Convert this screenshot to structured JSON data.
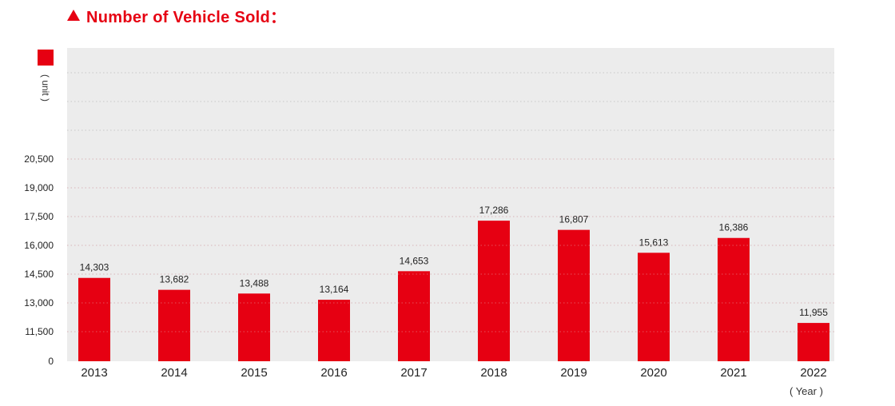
{
  "header": {
    "title": "Number of Vehicle Sold：",
    "icon": "triangle-up-icon"
  },
  "legend": {
    "unit": "( unit )"
  },
  "chart_data": {
    "type": "bar",
    "title": "Number of Vehicle Sold：",
    "xlabel": "( Year )",
    "ylabel": "( unit )",
    "categories": [
      "2013",
      "2014",
      "2015",
      "2016",
      "2017",
      "2018",
      "2019",
      "2020",
      "2021",
      "2022"
    ],
    "values": [
      14303,
      13682,
      13488,
      13164,
      14653,
      17286,
      16807,
      15613,
      16386,
      11955
    ],
    "value_labels": [
      "14,303",
      "13,682",
      "13,488",
      "13,164",
      "14,653",
      "17,286",
      "16,807",
      "15,613",
      "16,386",
      "11,955"
    ],
    "y_ticks": [
      0,
      11500,
      13000,
      14500,
      16000,
      17500,
      19000,
      20500
    ],
    "y_tick_labels": [
      "0",
      "11,500",
      "13,000",
      "14,500",
      "16,000",
      "17,500",
      "19,000",
      "20,500"
    ],
    "axis_break": true,
    "grid": true,
    "bar_color": "#e60012",
    "background": "#ececec"
  }
}
